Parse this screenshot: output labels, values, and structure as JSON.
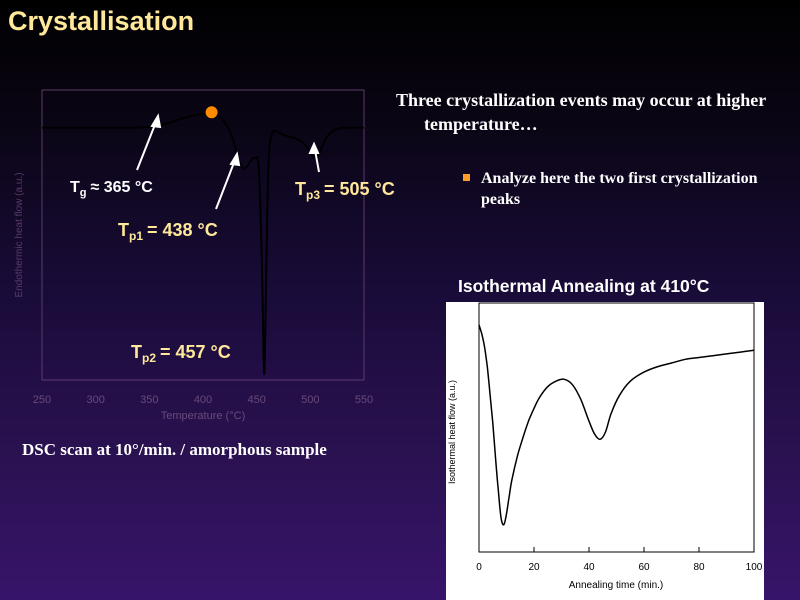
{
  "slide": {
    "title": "Crystallisation",
    "bullet_main": "Three crystallization events may occur at higher temperature…",
    "sub_bullet": "Analyze here the two first crystallization peaks",
    "caption": "DSC scan at 10°/min. / amorphous sample",
    "iso_title": "Isothermal Annealing at 410°C",
    "colors": {
      "title": "#ffe89a",
      "annotation_yellow": "#ffe89a",
      "bullet_square": "#ff9b2a",
      "marker": "#ff8c00",
      "axis_dim": "#5a3a6a"
    }
  },
  "chart_data": [
    {
      "type": "line",
      "xlabel": "Temperature (°C)",
      "ylabel": "Endothermic heat flow (a.u.)",
      "xlim": [
        250,
        550
      ],
      "x_ticks": [
        "250",
        "300",
        "350",
        "400",
        "450",
        "500",
        "550"
      ],
      "grid": false,
      "series": [
        {
          "x": [
            250,
            280,
            300,
            320,
            340,
            355,
            365,
            375,
            385,
            395,
            405,
            415,
            422,
            428,
            432,
            436,
            438,
            441,
            444,
            448,
            452,
            455,
            457,
            459,
            461,
            464,
            468,
            472,
            478,
            485,
            492,
            498,
            502,
            505,
            508,
            512,
            518,
            526,
            536,
            550
          ],
          "y": [
            0.0,
            0.0,
            0.0,
            0.0,
            0.0,
            0.1,
            0.3,
            0.6,
            0.9,
            1.1,
            1.2,
            1.0,
            0.2,
            -1.0,
            -2.5,
            -3.3,
            -3.5,
            -3.3,
            -2.9,
            -2.6,
            -3.5,
            -12.0,
            -21.0,
            -12.0,
            -3.0,
            -0.6,
            -0.3,
            -0.5,
            -0.7,
            -0.9,
            -1.2,
            -1.8,
            -2.4,
            -2.6,
            -2.3,
            -1.4,
            -0.5,
            -0.1,
            0.0,
            0.0
          ]
        }
      ],
      "annotations": [
        {
          "label": "T",
          "subscript": "g",
          "text": "≈ 365 °C",
          "x": 365
        },
        {
          "label": "T",
          "subscript": "p1",
          "text": "= 438 °C",
          "x": 438
        },
        {
          "label": "T",
          "subscript": "p2",
          "text": "= 457 °C",
          "x": 457
        },
        {
          "label": "T",
          "subscript": "p3",
          "text": "= 505 °C",
          "x": 505
        }
      ],
      "marker": {
        "x": 408,
        "y": 1.3
      }
    },
    {
      "type": "line",
      "title": "Isothermal Annealing at 410°C",
      "xlabel": "Annealing time (min.)",
      "ylabel": "Isothermal heat flow (a.u.)",
      "xlim": [
        0,
        100
      ],
      "x_ticks": [
        "0",
        "20",
        "40",
        "60",
        "80",
        "100"
      ],
      "grid": false,
      "series": [
        {
          "x": [
            0,
            1,
            2,
            3,
            4,
            5,
            6,
            7,
            8,
            9,
            10,
            11,
            12,
            14,
            16,
            18,
            20,
            22,
            25,
            28,
            31,
            34,
            37,
            40,
            42,
            44,
            46,
            48,
            51,
            55,
            60,
            65,
            70,
            75,
            80,
            85,
            90,
            95,
            100
          ],
          "y": [
            0.0,
            -0.5,
            -1.2,
            -2.3,
            -3.8,
            -5.4,
            -7.3,
            -9.1,
            -10.6,
            -11.0,
            -10.4,
            -9.4,
            -8.5,
            -7.2,
            -6.2,
            -5.3,
            -4.6,
            -4.0,
            -3.4,
            -3.1,
            -3.0,
            -3.3,
            -4.1,
            -5.3,
            -6.0,
            -6.3,
            -5.9,
            -4.9,
            -3.9,
            -3.1,
            -2.6,
            -2.3,
            -2.1,
            -1.9,
            -1.8,
            -1.7,
            -1.6,
            -1.5,
            -1.4
          ]
        }
      ]
    }
  ]
}
